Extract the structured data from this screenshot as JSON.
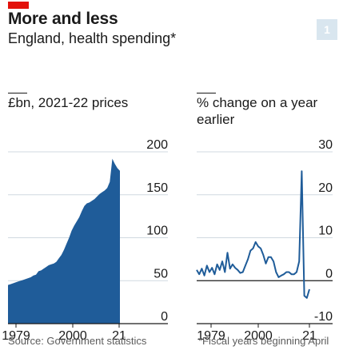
{
  "header": {
    "title": "More and less",
    "subtitle": "England, health spending*",
    "badge": "1"
  },
  "source": "Source: Government statistics",
  "footnote": "*Fiscal years beginning April",
  "colors": {
    "accent_red": "#e3120b",
    "series": "#1f5c99",
    "grid": "#d0d9e0",
    "baseline": "#1a1a1a"
  },
  "chart_data": [
    {
      "type": "area",
      "title": "£bn, 2021-22 prices",
      "series": [
        {
          "x": [
            1979,
            1980,
            1981,
            1982,
            1983,
            1984,
            1985,
            1986,
            1987,
            1988,
            1989,
            1990,
            1991,
            1992,
            1993,
            1994,
            1995,
            1996,
            1997,
            1998,
            1999,
            2000,
            2001,
            2002,
            2003,
            2004,
            2005,
            2006,
            2007,
            2008,
            2009,
            2010,
            2011,
            2012,
            2013,
            2014,
            2015,
            2016,
            2017,
            2018,
            2019,
            2020,
            2021,
            2022,
            2023
          ],
          "values": [
            45,
            46,
            47,
            48,
            49,
            50,
            51,
            52,
            53,
            54,
            56,
            57,
            61,
            62,
            64,
            66,
            68,
            69,
            70,
            72,
            76,
            80,
            86,
            93,
            100,
            108,
            114,
            119,
            124,
            131,
            137,
            140,
            141,
            143,
            145,
            148,
            151,
            153,
            155,
            158,
            165,
            192,
            186,
            181,
            178
          ]
        }
      ],
      "ylim": [
        0,
        200
      ],
      "yticks": [
        0,
        50,
        100,
        150,
        200
      ],
      "xticks": [
        "1979",
        "2000",
        "21"
      ],
      "grid": true
    },
    {
      "type": "line",
      "title": "% change on a year earlier",
      "series": [
        {
          "x": [
            1979,
            1980,
            1981,
            1982,
            1983,
            1984,
            1985,
            1986,
            1987,
            1988,
            1989,
            1990,
            1991,
            1992,
            1993,
            1994,
            1995,
            1996,
            1997,
            1998,
            1999,
            2000,
            2001,
            2002,
            2003,
            2004,
            2005,
            2006,
            2007,
            2008,
            2009,
            2010,
            2011,
            2012,
            2013,
            2014,
            2015,
            2016,
            2017,
            2018,
            2019,
            2020,
            2021,
            2022,
            2023
          ],
          "values": [
            2.5,
            1.5,
            2.8,
            1.2,
            3.5,
            2.0,
            3.0,
            1.5,
            3.8,
            2.5,
            4.5,
            2.0,
            6.5,
            2.8,
            3.8,
            3.0,
            2.5,
            1.8,
            2.0,
            3.5,
            5.0,
            7.0,
            7.5,
            9.0,
            8.0,
            7.5,
            6.0,
            4.0,
            5.5,
            5.5,
            4.5,
            2.0,
            0.8,
            1.2,
            1.5,
            2.0,
            2.0,
            1.5,
            1.5,
            2.0,
            4.5,
            25.5,
            -3.5,
            -4.0,
            -2.0
          ]
        }
      ],
      "ylim": [
        -10,
        30
      ],
      "yticks": [
        -10,
        0,
        10,
        20,
        30
      ],
      "xticks": [
        "1979",
        "2000",
        "21"
      ],
      "grid": true
    }
  ]
}
